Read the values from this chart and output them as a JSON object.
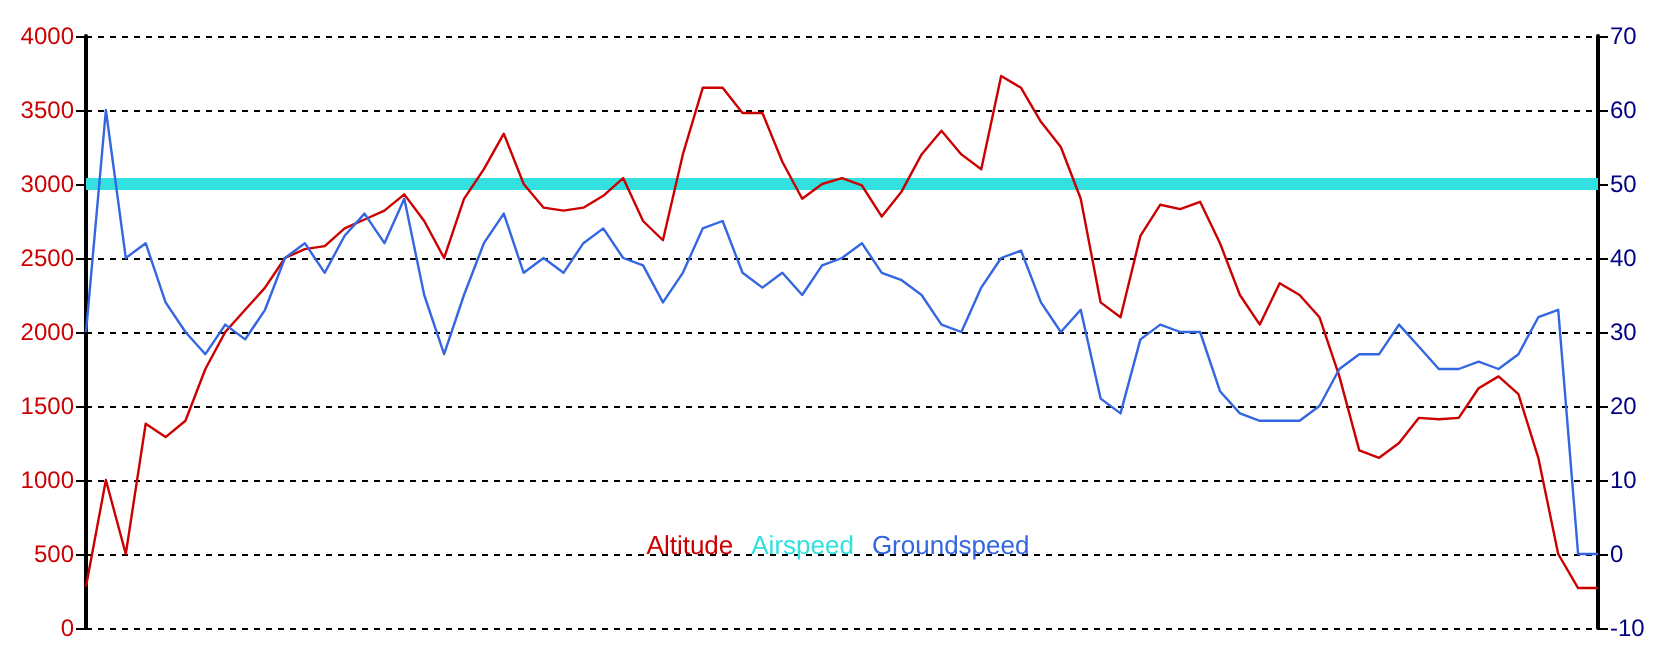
{
  "chart_data": {
    "type": "line",
    "categories": [
      null,
      null,
      null,
      null,
      null,
      null,
      null,
      null,
      null,
      null,
      null,
      null,
      null,
      null,
      null,
      null,
      null,
      null,
      null,
      null,
      null,
      null,
      null,
      null,
      null,
      null,
      null,
      null,
      null,
      null,
      null,
      null,
      null,
      null,
      null,
      null,
      null,
      null,
      null,
      null,
      null,
      null,
      null,
      null,
      null,
      null,
      null,
      null,
      null,
      null,
      null,
      null,
      null,
      null,
      null,
      null,
      null,
      null,
      null,
      null,
      null,
      null,
      null,
      null,
      null,
      null,
      null,
      null,
      null,
      null,
      null,
      null,
      null,
      null,
      null,
      null,
      null
    ],
    "series": [
      {
        "name": "Altitude",
        "color": "#cc0000",
        "values": [
          280,
          1000,
          500,
          1380,
          1290,
          1400,
          1750,
          2000,
          2150,
          2300,
          2500,
          2560,
          2580,
          2700,
          2760,
          2820,
          2930,
          2750,
          2500,
          2900,
          3100,
          3340,
          3000,
          2840,
          2820,
          2840,
          2920,
          3040,
          2750,
          2620,
          3200,
          3650,
          3650,
          3480,
          3480,
          3150,
          2900,
          3000,
          3040,
          2990,
          2780,
          2950,
          3200,
          3360,
          3200,
          3100,
          3730,
          3650,
          3420,
          3250,
          2900,
          2200,
          2100,
          2650,
          2860,
          2830,
          2880,
          2600,
          2250,
          2050,
          2330,
          2250,
          2100,
          1700,
          1200,
          1150,
          1250,
          1420,
          1410,
          1420,
          1620,
          1700,
          1580,
          1150,
          500,
          270,
          270
        ]
      },
      {
        "name": "Airspeed",
        "color": "#33e0e0",
        "axis": "y2",
        "values": [
          50,
          50,
          50,
          50,
          50,
          50,
          50,
          50,
          50,
          50,
          50,
          50,
          50,
          50,
          50,
          50,
          50,
          50,
          50,
          50,
          50,
          50,
          50,
          50,
          50,
          50,
          50,
          50,
          50,
          50,
          50,
          50,
          50,
          50,
          50,
          50,
          50,
          50,
          50,
          50,
          50,
          50,
          50,
          50,
          50,
          50,
          50,
          50,
          50,
          50,
          50,
          50,
          50,
          50,
          50,
          50,
          50,
          50,
          50,
          50,
          50,
          50,
          50,
          50,
          50,
          50,
          50,
          50,
          50,
          50,
          50,
          50,
          50,
          50,
          50,
          50,
          50
        ]
      },
      {
        "name": "Groundspeed",
        "color": "#3366e0",
        "axis": "y2",
        "values": [
          30,
          60,
          40,
          42,
          34,
          30,
          27,
          31,
          29,
          33,
          40,
          42,
          38,
          43,
          46,
          42,
          48,
          35,
          27,
          35,
          42,
          46,
          38,
          40,
          38,
          42,
          44,
          40,
          39,
          34,
          38,
          44,
          45,
          38,
          36,
          38,
          35,
          39,
          40,
          42,
          38,
          37,
          35,
          31,
          30,
          36,
          40,
          41,
          34,
          30,
          33,
          21,
          19,
          29,
          31,
          30,
          30,
          22,
          19,
          18,
          18,
          18,
          20,
          25,
          27,
          27,
          31,
          28,
          25,
          25,
          26,
          25,
          27,
          32,
          33,
          0,
          0
        ]
      }
    ],
    "ylim": [
      0,
      4000
    ],
    "yticks": [
      0,
      500,
      1000,
      1500,
      2000,
      2500,
      3000,
      3500,
      4000
    ],
    "y2lim": [
      -10,
      70
    ],
    "y2ticks": [
      -10,
      0,
      10,
      20,
      30,
      40,
      50,
      60,
      70
    ],
    "grid": "y",
    "legend": "bottom",
    "marker": "none",
    "line_style": "solid"
  }
}
